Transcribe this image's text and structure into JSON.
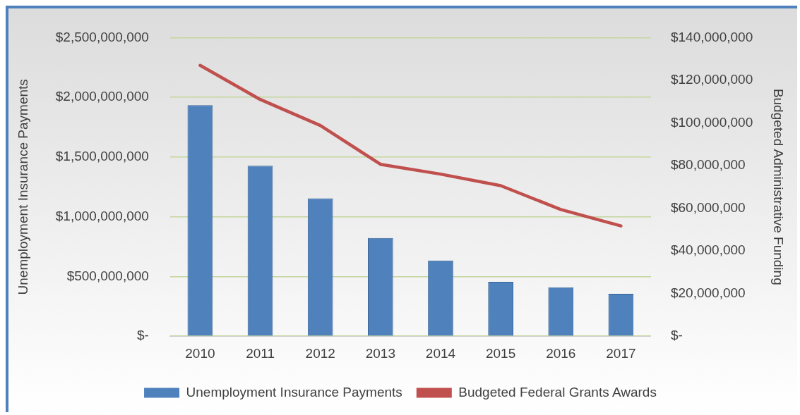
{
  "chart_data": {
    "type": "bar",
    "categories": [
      "2010",
      "2011",
      "2012",
      "2013",
      "2014",
      "2015",
      "2016",
      "2017"
    ],
    "series": [
      {
        "name": "Unemployment Insurance Payments",
        "color": "#4f81bd",
        "values": [
          1935000000,
          1428000000,
          1155000000,
          823000000,
          634000000,
          456000000,
          409000000,
          355000000
        ]
      },
      {
        "name": "Budgeted Federal Grants Awards",
        "type": "line",
        "axis": "y2",
        "color": "#c0504d",
        "values": [
          127000000,
          111000000,
          98800000,
          80600000,
          76000000,
          70600000,
          59400000,
          51700000
        ]
      }
    ],
    "ylabel": "Unemployment Insurance Payments",
    "y2label": "Budgeted Administrative Funding",
    "ylim": [
      0,
      2500000000
    ],
    "yticks": [
      {
        "value": 0,
        "label": "$-"
      },
      {
        "value": 500000000,
        "label": "$500,000,000"
      },
      {
        "value": 1000000000,
        "label": "$1,000,000,000"
      },
      {
        "value": 1500000000,
        "label": "$1,500,000,000"
      },
      {
        "value": 2000000000,
        "label": "$2,000,000,000"
      },
      {
        "value": 2500000000,
        "label": "$2,500,000,000"
      }
    ],
    "y2lim": [
      0,
      140000000
    ],
    "y2ticks": [
      {
        "value": 0,
        "label": "$-"
      },
      {
        "value": 20000000,
        "label": "$20,000,000"
      },
      {
        "value": 40000000,
        "label": "$40,000,000"
      },
      {
        "value": 60000000,
        "label": "$60,000,000"
      },
      {
        "value": 80000000,
        "label": "$80,000,000"
      },
      {
        "value": 100000000,
        "label": "$100,000,000"
      },
      {
        "value": 120000000,
        "label": "$120,000,000"
      },
      {
        "value": 140000000,
        "label": "$140,000,000"
      }
    ],
    "grid": "y",
    "legend": "bottom",
    "marker": "none",
    "line_style": "solid"
  }
}
